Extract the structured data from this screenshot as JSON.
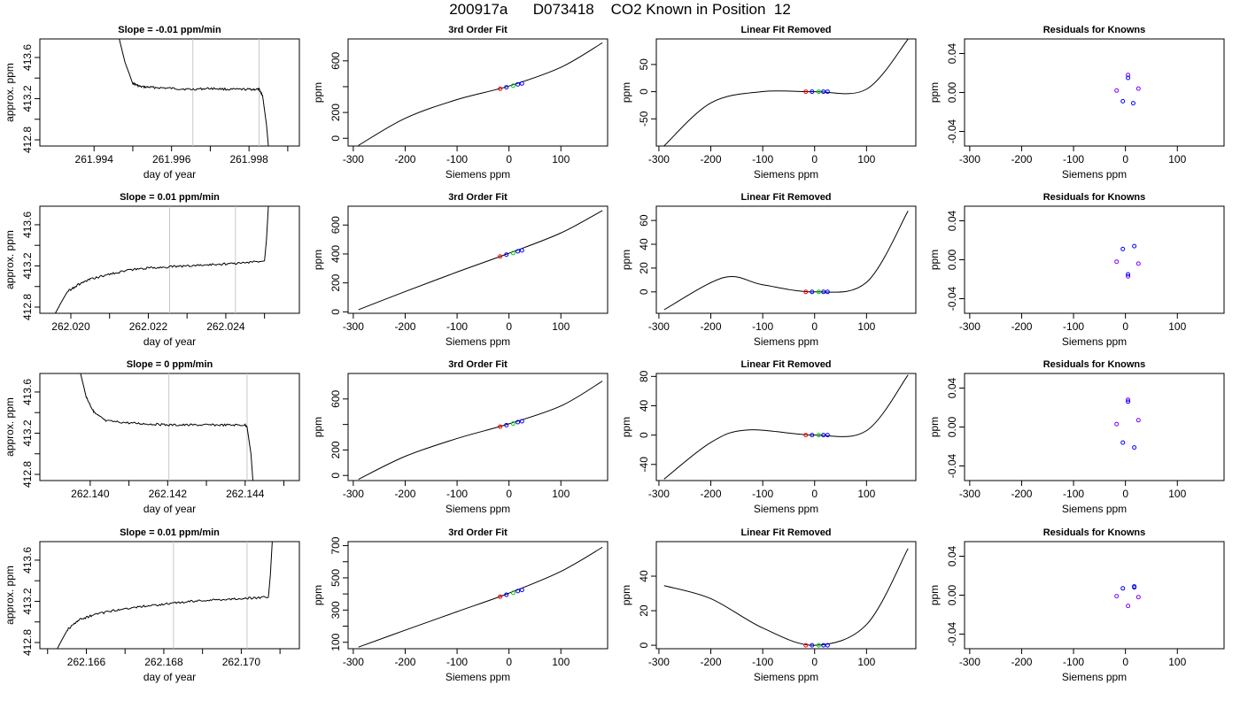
{
  "figure_title": "200917a      D073418    CO2 Known in Position  12",
  "chart_data": [
    {
      "type": "line",
      "panel": "time-series",
      "row": 0,
      "title": "Slope =  -0.01  ppm/min",
      "xlabel": "day of year",
      "ylabel": "approx. ppm",
      "xlim": [
        261.9926,
        261.9993
      ],
      "ylim": [
        412.74,
        413.78
      ],
      "xticks": [
        261.994,
        261.996,
        261.998
      ],
      "xminor": [
        261.995,
        261.997,
        261.999
      ],
      "yticks": [
        412.8,
        413.2,
        413.6
      ],
      "yminor": [
        413.0,
        413.4
      ],
      "vlines": [
        261.99655,
        261.99826
      ],
      "x": [
        261.99465,
        261.9948,
        261.995,
        261.9952,
        261.9955,
        261.996,
        261.9965,
        261.997,
        261.9975,
        261.998,
        261.99826,
        261.99835,
        261.99845,
        261.9985
      ],
      "y": [
        413.78,
        413.55,
        413.35,
        413.315,
        413.31,
        413.3,
        413.29,
        413.3,
        413.29,
        413.29,
        413.29,
        413.23,
        412.95,
        412.74
      ]
    },
    {
      "type": "line",
      "panel": "fit",
      "row": 0,
      "title": "3rd Order Fit",
      "xlabel": "Siemens ppm",
      "ylabel": "ppm",
      "xlim": [
        -310,
        190
      ],
      "ylim": [
        -60,
        770
      ],
      "xticks": [
        -300,
        -200,
        -100,
        0,
        100
      ],
      "yticks": [
        0,
        200,
        600
      ],
      "yminor": [
        400
      ],
      "x": [
        -290,
        -200,
        -100,
        0,
        100,
        180
      ],
      "y": [
        -55,
        155,
        300,
        405,
        550,
        740
      ],
      "points_x": [
        -17,
        -5,
        8,
        17,
        25
      ],
      "points_y": [
        383,
        395,
        407,
        418,
        425
      ]
    },
    {
      "type": "line",
      "panel": "linear-removed",
      "row": 0,
      "title": "Linear Fit Removed",
      "xlabel": "Siemens ppm",
      "ylabel": "ppm",
      "xlim": [
        -305,
        195
      ],
      "ylim": [
        -100,
        97
      ],
      "xticks": [
        -300,
        -200,
        -100,
        0,
        100
      ],
      "yticks": [
        -50,
        0,
        50
      ],
      "x": [
        -290,
        -200,
        -100,
        0,
        100,
        180
      ],
      "y": [
        -99.7,
        -20.7,
        0.2,
        0,
        4.6,
        96.6
      ],
      "points_x": [
        -17,
        -5,
        8,
        17,
        25
      ],
      "points_y": [
        0,
        0,
        0,
        0,
        0
      ]
    },
    {
      "type": "scatter",
      "panel": "residuals",
      "row": 0,
      "title": "Residuals for Knowns",
      "xlabel": "Siemens ppm",
      "ylabel": "ppm",
      "xlim": [
        -310,
        190
      ],
      "ylim": [
        -0.055,
        0.055
      ],
      "xticks": [
        -300,
        -200,
        -100,
        0,
        100
      ],
      "yticks": [
        -0.04,
        0.0,
        0.04
      ],
      "points_x": [
        -17,
        -5,
        5,
        15,
        25,
        5
      ],
      "points_y": [
        0.002,
        -0.009,
        0.018,
        -0.011,
        0.004,
        0.015
      ]
    },
    {
      "type": "line",
      "panel": "time-series",
      "row": 1,
      "title": "Slope =  0.01  ppm/min",
      "xlabel": "day of year",
      "ylabel": "approx. ppm",
      "xlim": [
        262.0192,
        262.0259
      ],
      "ylim": [
        412.74,
        413.78
      ],
      "xticks": [
        262.02,
        262.022,
        262.024
      ],
      "xminor": [
        262.021,
        262.023,
        262.025
      ],
      "yticks": [
        412.8,
        413.2,
        413.6
      ],
      "yminor": [
        413.0,
        413.4
      ],
      "vlines": [
        262.02255,
        262.02425
      ],
      "x": [
        262.0196,
        262.0199,
        262.0202,
        262.0205,
        262.021,
        262.0215,
        262.022,
        262.0225,
        262.023,
        262.0235,
        262.024,
        262.0245,
        262.025,
        262.02505,
        262.0251
      ],
      "y": [
        412.74,
        412.95,
        413.02,
        413.07,
        413.12,
        413.16,
        413.18,
        413.19,
        413.2,
        413.21,
        413.22,
        413.23,
        413.25,
        413.45,
        413.78
      ]
    },
    {
      "type": "line",
      "panel": "fit",
      "row": 1,
      "title": "3rd Order Fit",
      "xlabel": "Siemens ppm",
      "ylabel": "ppm",
      "xlim": [
        -310,
        190
      ],
      "ylim": [
        -10,
        730
      ],
      "xticks": [
        -300,
        -200,
        -100,
        0,
        100
      ],
      "yticks": [
        0,
        200,
        400,
        600
      ],
      "x": [
        -290,
        -200,
        -100,
        0,
        100,
        180
      ],
      "y": [
        15,
        140,
        275,
        405,
        545,
        700
      ],
      "points_x": [
        -17,
        -5,
        8,
        17,
        25
      ],
      "points_y": [
        383,
        395,
        407,
        418,
        425
      ]
    },
    {
      "type": "line",
      "panel": "linear-removed",
      "row": 1,
      "title": "Linear Fit Removed",
      "xlabel": "Siemens ppm",
      "ylabel": "ppm",
      "xlim": [
        -305,
        195
      ],
      "ylim": [
        -18,
        72
      ],
      "xticks": [
        -300,
        -200,
        -100,
        0,
        100
      ],
      "yticks": [
        0,
        20,
        40,
        60
      ],
      "x": [
        -290,
        -175,
        -100,
        0,
        100,
        180
      ],
      "y": [
        -15,
        12,
        6,
        0,
        8,
        68
      ],
      "points_x": [
        -17,
        -5,
        8,
        17,
        25
      ],
      "points_y": [
        0,
        0,
        0,
        0,
        0
      ]
    },
    {
      "type": "scatter",
      "panel": "residuals",
      "row": 1,
      "title": "Residuals for Knowns",
      "xlabel": "Siemens ppm",
      "ylabel": "ppm",
      "xlim": [
        -310,
        190
      ],
      "ylim": [
        -0.055,
        0.055
      ],
      "xticks": [
        -300,
        -200,
        -100,
        0,
        100
      ],
      "yticks": [
        -0.04,
        0.0,
        0.04
      ],
      "points_x": [
        -17,
        -5,
        5,
        17,
        25,
        5
      ],
      "points_y": [
        -0.002,
        0.011,
        -0.017,
        0.014,
        -0.004,
        -0.015
      ]
    },
    {
      "type": "line",
      "panel": "time-series",
      "row": 2,
      "title": "Slope =  0  ppm/min",
      "xlabel": "day of year",
      "ylabel": "approx. ppm",
      "xlim": [
        262.1387,
        262.1454
      ],
      "ylim": [
        412.74,
        413.78
      ],
      "xticks": [
        262.14,
        262.142,
        262.144
      ],
      "xminor": [
        262.141,
        262.143,
        262.145
      ],
      "yticks": [
        412.8,
        413.2,
        413.6
      ],
      "yminor": [
        413.0,
        413.4
      ],
      "vlines": [
        262.14203,
        262.14405
      ],
      "x": [
        262.13975,
        262.1399,
        262.1401,
        262.1404,
        262.141,
        262.1415,
        262.142,
        262.1425,
        262.143,
        262.1435,
        262.144,
        262.14405,
        262.14415,
        262.1442
      ],
      "y": [
        413.78,
        413.55,
        413.4,
        413.32,
        413.3,
        413.29,
        413.28,
        413.28,
        413.28,
        413.28,
        413.28,
        413.26,
        413.0,
        412.74
      ]
    },
    {
      "type": "line",
      "panel": "fit",
      "row": 2,
      "title": "3rd Order Fit",
      "xlabel": "Siemens ppm",
      "ylabel": "ppm",
      "xlim": [
        -310,
        190
      ],
      "ylim": [
        -40,
        800
      ],
      "xticks": [
        -300,
        -200,
        -100,
        0,
        100
      ],
      "yticks": [
        0,
        200,
        600
      ],
      "yminor": [
        400
      ],
      "x": [
        -290,
        -200,
        -100,
        0,
        100,
        180
      ],
      "y": [
        -30,
        150,
        290,
        405,
        545,
        740
      ],
      "points_x": [
        -17,
        -5,
        8,
        17,
        25
      ],
      "points_y": [
        383,
        395,
        407,
        418,
        425
      ]
    },
    {
      "type": "line",
      "panel": "linear-removed",
      "row": 2,
      "title": "Linear Fit Removed",
      "xlabel": "Siemens ppm",
      "ylabel": "ppm",
      "xlim": [
        -305,
        195
      ],
      "ylim": [
        -62,
        84
      ],
      "xticks": [
        -300,
        -200,
        -100,
        0,
        100
      ],
      "yticks": [
        -40,
        0,
        40,
        80
      ],
      "x": [
        -290,
        -200,
        -130,
        0,
        100,
        180
      ],
      "y": [
        -60,
        -10,
        7,
        0,
        6,
        82
      ],
      "points_x": [
        -17,
        -5,
        8,
        17,
        25
      ],
      "points_y": [
        0,
        0,
        0,
        0,
        0
      ]
    },
    {
      "type": "scatter",
      "panel": "residuals",
      "row": 2,
      "title": "Residuals for Knowns",
      "xlabel": "Siemens ppm",
      "ylabel": "ppm",
      "xlim": [
        -310,
        190
      ],
      "ylim": [
        -0.055,
        0.055
      ],
      "xticks": [
        -300,
        -200,
        -100,
        0,
        100
      ],
      "yticks": [
        -0.04,
        0.0,
        0.04
      ],
      "points_x": [
        -17,
        -5,
        5,
        17,
        25,
        5
      ],
      "points_y": [
        0.003,
        -0.016,
        0.028,
        -0.021,
        0.007,
        0.026
      ]
    },
    {
      "type": "line",
      "panel": "time-series",
      "row": 3,
      "title": "Slope =  0.01  ppm/min",
      "xlabel": "day of year",
      "ylabel": "approx. ppm",
      "xlim": [
        262.1648,
        262.1715
      ],
      "ylim": [
        412.74,
        413.78
      ],
      "xticks": [
        262.166,
        262.168,
        262.17
      ],
      "xminor": [
        262.165,
        262.167,
        262.169,
        262.171
      ],
      "yticks": [
        412.8,
        413.2,
        413.6
      ],
      "yminor": [
        413.0,
        413.4
      ],
      "vlines": [
        262.16825,
        262.17015
      ],
      "x": [
        262.16525,
        262.1655,
        262.1658,
        262.1662,
        262.1667,
        262.1672,
        262.1677,
        262.1682,
        262.1687,
        262.1692,
        262.1697,
        262.1702,
        262.1707,
        262.17075,
        262.1708
      ],
      "y": [
        412.74,
        412.92,
        413.02,
        413.07,
        413.11,
        413.14,
        413.16,
        413.18,
        413.2,
        413.21,
        413.22,
        413.23,
        413.24,
        413.45,
        413.78
      ]
    },
    {
      "type": "line",
      "panel": "fit",
      "row": 3,
      "title": "3rd Order Fit",
      "xlabel": "Siemens ppm",
      "ylabel": "ppm",
      "xlim": [
        -310,
        190
      ],
      "ylim": [
        60,
        725
      ],
      "xticks": [
        -300,
        -200,
        -100,
        0,
        100
      ],
      "yticks": [
        100,
        300,
        500,
        700
      ],
      "yminor": [
        200,
        400,
        600
      ],
      "x": [
        -290,
        -200,
        -100,
        0,
        100,
        180
      ],
      "y": [
        70,
        175,
        290,
        405,
        540,
        690
      ],
      "points_x": [
        -17,
        -5,
        8,
        17,
        25
      ],
      "points_y": [
        383,
        395,
        407,
        418,
        425
      ]
    },
    {
      "type": "line",
      "panel": "linear-removed",
      "row": 3,
      "title": "Linear Fit Removed",
      "xlabel": "Siemens ppm",
      "ylabel": "ppm",
      "xlim": [
        -305,
        195
      ],
      "ylim": [
        -2,
        60
      ],
      "xticks": [
        -300,
        -200,
        -100,
        0,
        100
      ],
      "yticks": [
        0,
        20,
        40
      ],
      "x": [
        -290,
        -200,
        -100,
        0,
        100,
        180
      ],
      "y": [
        34.5,
        27,
        10,
        0,
        12,
        56
      ],
      "points_x": [
        -17,
        -5,
        8,
        17,
        25
      ],
      "points_y": [
        0,
        0,
        0,
        0,
        0
      ]
    },
    {
      "type": "scatter",
      "panel": "residuals",
      "row": 3,
      "title": "Residuals for Knowns",
      "xlabel": "Siemens ppm",
      "ylabel": "ppm",
      "xlim": [
        -310,
        190
      ],
      "ylim": [
        -0.055,
        0.055
      ],
      "xticks": [
        -300,
        -200,
        -100,
        0,
        100
      ],
      "yticks": [
        -0.04,
        0.0,
        0.04
      ],
      "points_x": [
        -17,
        -5,
        5,
        17,
        25,
        17
      ],
      "points_y": [
        -0.001,
        0.007,
        -0.011,
        0.009,
        -0.002,
        0.008
      ]
    }
  ]
}
